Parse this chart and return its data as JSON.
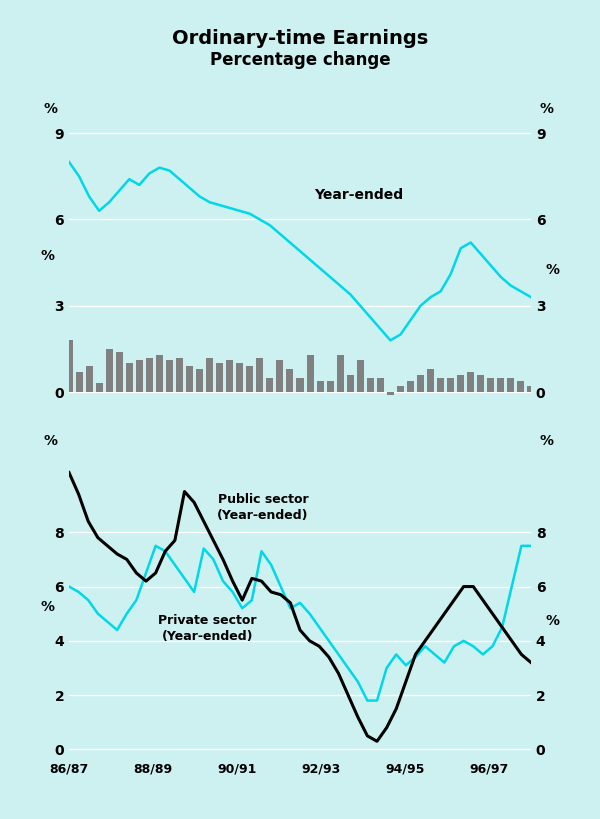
{
  "title": "Ordinary-time Earnings",
  "subtitle": "Percentage change",
  "bg_color": "#cdf0f0",
  "panel1": {
    "ylim": [
      -0.5,
      9.5
    ],
    "yticks": [
      0,
      3,
      6,
      9
    ],
    "year_ended_color": "#00d8e8",
    "bar_color": "#808080",
    "year_ended": [
      8.0,
      7.5,
      6.8,
      6.3,
      6.6,
      7.0,
      7.4,
      7.2,
      7.6,
      7.8,
      7.7,
      7.4,
      7.1,
      6.8,
      6.6,
      6.5,
      6.4,
      6.3,
      6.2,
      6.0,
      5.8,
      5.5,
      5.2,
      4.9,
      4.6,
      4.3,
      4.0,
      3.7,
      3.4,
      3.0,
      2.6,
      2.2,
      1.8,
      2.0,
      2.5,
      3.0,
      3.3,
      3.5,
      4.1,
      5.0,
      5.2,
      4.8,
      4.4,
      4.0,
      3.7,
      3.5,
      3.3
    ],
    "quarterly": [
      1.8,
      0.7,
      0.9,
      0.3,
      1.5,
      1.4,
      1.0,
      1.1,
      1.2,
      1.3,
      1.1,
      1.2,
      0.9,
      0.8,
      1.2,
      1.0,
      1.1,
      1.0,
      0.9,
      1.2,
      0.5,
      1.1,
      0.8,
      0.5,
      1.3,
      0.4,
      0.4,
      1.3,
      0.6,
      1.1,
      0.5,
      0.5,
      -0.1,
      0.2,
      0.4,
      0.6,
      0.8,
      0.5,
      0.5,
      0.6,
      0.7,
      0.6,
      0.5,
      0.5,
      0.5,
      0.4,
      0.2
    ]
  },
  "panel2": {
    "ylim": [
      -0.3,
      10.3
    ],
    "yticks": [
      0,
      2,
      4,
      6,
      8
    ],
    "public_color": "#000000",
    "private_color": "#00d8e8",
    "public": [
      10.2,
      9.4,
      8.4,
      7.8,
      7.5,
      7.2,
      7.0,
      6.5,
      6.2,
      6.5,
      7.3,
      7.7,
      9.5,
      9.1,
      8.4,
      7.7,
      7.0,
      6.2,
      5.5,
      6.3,
      6.2,
      5.8,
      5.7,
      5.4,
      4.4,
      4.0,
      3.8,
      3.4,
      2.8,
      2.0,
      1.2,
      0.5,
      0.3,
      0.8,
      1.5,
      2.5,
      3.5,
      4.0,
      4.5,
      5.0,
      5.5,
      6.0,
      6.0,
      5.5,
      5.0,
      4.5,
      4.0,
      3.5,
      3.2
    ],
    "private": [
      6.0,
      5.8,
      5.5,
      5.0,
      4.7,
      4.4,
      5.0,
      5.5,
      6.5,
      7.5,
      7.3,
      6.8,
      6.3,
      5.8,
      7.4,
      7.0,
      6.2,
      5.8,
      5.2,
      5.5,
      7.3,
      6.8,
      6.0,
      5.2,
      5.4,
      5.0,
      4.5,
      4.0,
      3.5,
      3.0,
      2.5,
      1.8,
      1.8,
      3.0,
      3.5,
      3.1,
      3.4,
      3.8,
      3.5,
      3.2,
      3.8,
      4.0,
      3.8,
      3.5,
      3.8,
      4.5,
      6.0,
      7.5,
      7.5
    ]
  }
}
